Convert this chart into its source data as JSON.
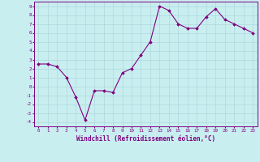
{
  "x": [
    0,
    1,
    2,
    3,
    4,
    5,
    6,
    7,
    8,
    9,
    10,
    11,
    12,
    13,
    14,
    15,
    16,
    17,
    18,
    19,
    20,
    21,
    22,
    23
  ],
  "y": [
    2.5,
    2.5,
    2.2,
    1.0,
    -1.2,
    -3.8,
    -0.5,
    -0.5,
    -0.7,
    1.5,
    2.0,
    3.5,
    5.0,
    9.0,
    8.5,
    7.0,
    6.5,
    6.5,
    7.8,
    8.7,
    7.5,
    7.0,
    6.5,
    6.0
  ],
  "xlabel": "Windchill (Refroidissement éolien,°C)",
  "bg_color": "#c8eef0",
  "line_color": "#800080",
  "grid_color": "#b0d8dc",
  "ylim": [
    -4.5,
    9.5
  ],
  "xlim": [
    -0.5,
    23.5
  ],
  "yticks": [
    -4,
    -3,
    -2,
    -1,
    0,
    1,
    2,
    3,
    4,
    5,
    6,
    7,
    8,
    9
  ],
  "xticks": [
    0,
    1,
    2,
    3,
    4,
    5,
    6,
    7,
    8,
    9,
    10,
    11,
    12,
    13,
    14,
    15,
    16,
    17,
    18,
    19,
    20,
    21,
    22,
    23
  ]
}
